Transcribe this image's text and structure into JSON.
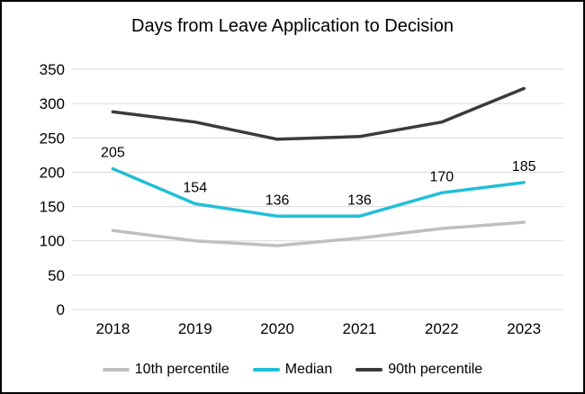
{
  "window": {
    "title": "Days from Leave Application to Decision"
  },
  "chart_data": {
    "type": "line",
    "title": "Days from Leave Application to Decision",
    "categories": [
      "2018",
      "2019",
      "2020",
      "2021",
      "2022",
      "2023"
    ],
    "series": [
      {
        "name": "10th percentile",
        "color": "#BFBFBF",
        "values": [
          115,
          100,
          93,
          104,
          118,
          127
        ],
        "data_labels": false
      },
      {
        "name": "Median",
        "color": "#22BED8",
        "values": [
          205,
          154,
          136,
          136,
          170,
          185
        ],
        "data_labels": true
      },
      {
        "name": "90th percentile",
        "color": "#3B3B3B",
        "values": [
          288,
          273,
          248,
          252,
          273,
          322
        ],
        "data_labels": false
      }
    ],
    "data_label_values": [
      "205",
      "154",
      "136",
      "136",
      "170",
      "185"
    ],
    "y_axis": {
      "min": 0,
      "max": 350,
      "step": 50,
      "tick_labels": [
        "0",
        "50",
        "100",
        "150",
        "200",
        "250",
        "300",
        "350"
      ]
    },
    "legend_position": "bottom",
    "grid": true,
    "grid_color": "#D9D9D9",
    "text_color": "#000000"
  }
}
